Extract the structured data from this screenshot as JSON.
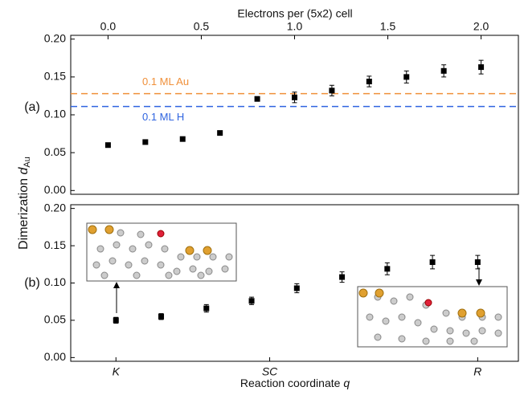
{
  "chart_data": [
    {
      "type": "scatter",
      "panel_label": "(a)",
      "x_label": "Electrons per (5x2) cell",
      "y_label": "Dimerization",
      "y_label_symbol": "d",
      "y_label_sub": "Au",
      "x": [
        0,
        0.2,
        0.4,
        0.6,
        0.8,
        1.0,
        1.2,
        1.4,
        1.6,
        1.8,
        2.0
      ],
      "series": [
        {
          "color": "#000000",
          "values": [
            0.06,
            0.064,
            0.068,
            0.076,
            0.121,
            0.123,
            0.132,
            0.144,
            0.15,
            0.158,
            0.163
          ],
          "errors": [
            0,
            0,
            0,
            0,
            0,
            0.007,
            0.007,
            0.007,
            0.008,
            0.008,
            0.009
          ]
        }
      ],
      "reference_lines": [
        {
          "name": "0.1 ML Au",
          "value": 0.128,
          "color": "#f0903a"
        },
        {
          "name": "0.1 ML H",
          "value": 0.111,
          "color": "#2f64e0"
        }
      ],
      "xlim": [
        -0.2,
        2.2
      ],
      "ylim": [
        -0.005,
        0.205
      ],
      "xticks": [
        {
          "value": 0,
          "label": "0.0"
        },
        0.5,
        {
          "value": 1,
          "label": "1.0"
        },
        1.5,
        {
          "value": 2,
          "label": "2.0"
        }
      ],
      "yticks": [
        {
          "value": 0,
          "label": "0.00"
        },
        0.05,
        {
          "value": 0.1,
          "label": "0.10"
        },
        0.15,
        {
          "value": 0.2,
          "label": "0.20"
        }
      ]
    },
    {
      "type": "scatter",
      "panel_label": "(b)",
      "x_label": "Reaction coordinate",
      "x_label_symbol": "q",
      "x": [
        0,
        1,
        2,
        3,
        4,
        5,
        6,
        7,
        8
      ],
      "series": [
        {
          "color": "#000000",
          "values": [
            0.05,
            0.055,
            0.066,
            0.076,
            0.093,
            0.108,
            0.119,
            0.128,
            0.128
          ],
          "errors": [
            0.004,
            0.004,
            0.005,
            0.005,
            0.006,
            0.007,
            0.008,
            0.009,
            0.009
          ]
        }
      ],
      "xlim": [
        -1.0,
        8.9
      ],
      "ylim": [
        -0.005,
        0.205
      ],
      "xticks": [
        {
          "value": 0,
          "label": "K"
        },
        {
          "value": 3.4,
          "label": "SC"
        },
        {
          "value": 8,
          "label": "R"
        }
      ],
      "yticks": [
        {
          "value": 0,
          "label": "0.00"
        },
        0.05,
        {
          "value": 0.1,
          "label": "0.10"
        },
        0.15,
        {
          "value": 0.2,
          "label": "0.20"
        }
      ]
    }
  ]
}
